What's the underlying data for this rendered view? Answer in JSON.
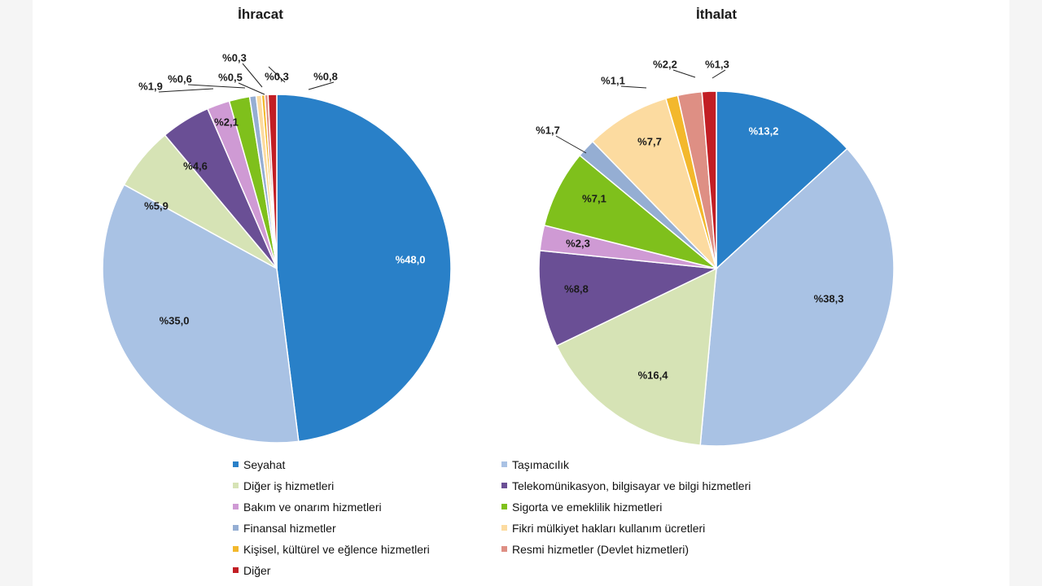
{
  "categories": [
    {
      "label": "Seyahat",
      "color": "#2980c8"
    },
    {
      "label": "Taşımacılık",
      "color": "#a9c2e4"
    },
    {
      "label": "Diğer iş hizmetleri",
      "color": "#d6e3b5"
    },
    {
      "label": "Telekomünikasyon, bilgisayar ve bilgi hizmetleri",
      "color": "#6a4f95"
    },
    {
      "label": "Bakım ve onarım hizmetleri",
      "color": "#cf9ad4"
    },
    {
      "label": "Sigorta ve emeklilik hizmetleri",
      "color": "#7fc01c"
    },
    {
      "label": "Finansal hizmetler",
      "color": "#95aed3"
    },
    {
      "label": "Fikri mülkiyet hakları kullanım ücretleri",
      "color": "#fcdba0"
    },
    {
      "label": "Kişisel, kültürel ve eğlence hizmetleri",
      "color": "#f3b82c"
    },
    {
      "label": "Resmi hizmetler (Devlet hizmetleri)",
      "color": "#de8f84"
    },
    {
      "label": "Diğer",
      "color": "#c21e24"
    }
  ],
  "chart_data": [
    {
      "type": "pie",
      "title": "İhracat",
      "values": [
        48.0,
        35.0,
        5.9,
        4.6,
        2.1,
        1.9,
        0.6,
        0.5,
        0.3,
        0.3,
        0.8
      ],
      "labels": [
        "%48,0",
        "%35,0",
        "%5,9",
        "%4,6",
        "%2,1",
        "%1,9",
        "%0,6",
        "%0,5",
        "%0,3",
        "%0,3",
        "%0,8"
      ]
    },
    {
      "type": "pie",
      "title": "İthalat",
      "values": [
        13.2,
        38.3,
        16.4,
        8.8,
        2.3,
        7.1,
        1.7,
        7.7,
        1.1,
        2.2,
        1.3
      ],
      "labels": [
        "%13,2",
        "%38,3",
        "%16,4",
        "%8,8",
        "%2,3",
        "%7,1",
        "%1,7",
        "%7,7",
        "%1,1",
        "%2,2",
        "%1,3"
      ]
    }
  ]
}
